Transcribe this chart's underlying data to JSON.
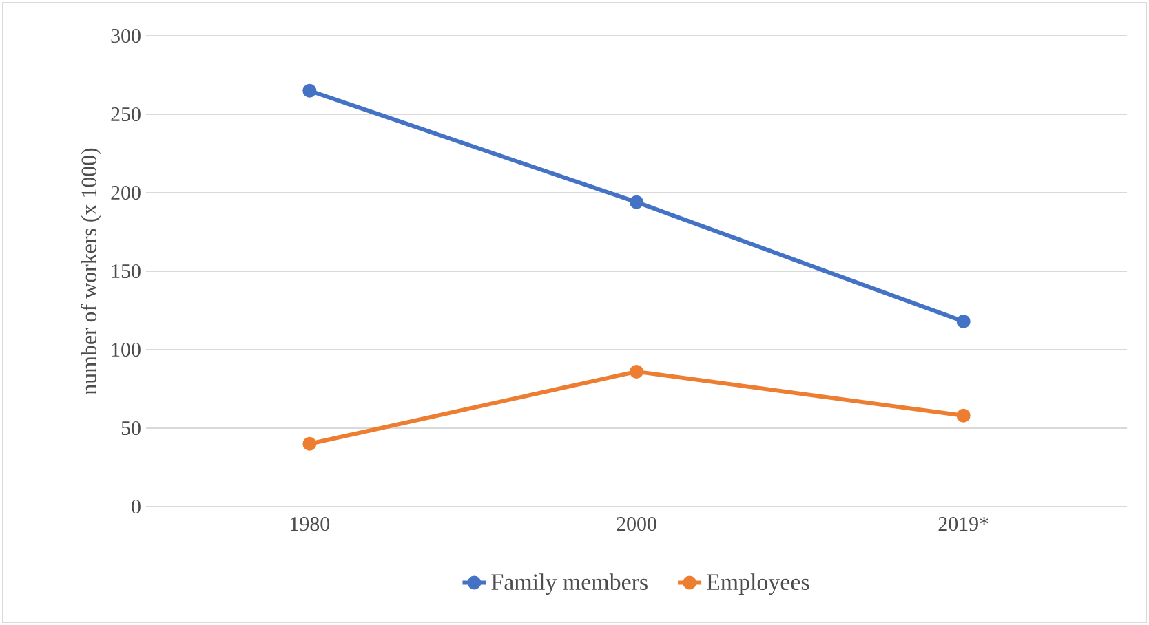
{
  "chart_data": {
    "type": "line",
    "ylabel": "number of workers (x 1000)",
    "categories": [
      "1980",
      "2000",
      "2019*"
    ],
    "series": [
      {
        "name": "Family members",
        "color": "#4472c4",
        "values": [
          265,
          194,
          118
        ]
      },
      {
        "name": "Employees",
        "color": "#ed7d31",
        "values": [
          40,
          86,
          58
        ]
      }
    ],
    "ylim": [
      0,
      300
    ],
    "yticks": [
      0,
      50,
      100,
      150,
      200,
      250,
      300
    ],
    "grid": "y",
    "legend": "bottom",
    "marker": "circle",
    "line_style": "solid"
  }
}
